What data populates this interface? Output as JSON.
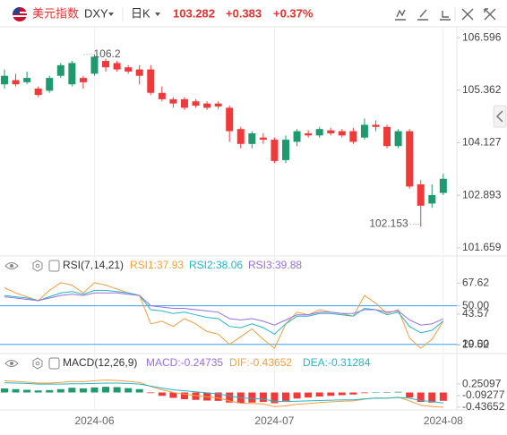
{
  "header": {
    "name": "美元指数",
    "symbol": "DXY",
    "period": "日K",
    "price": 103.282,
    "change": "+0.383",
    "change_pct": "+0.37%"
  },
  "chart_data": [
    {
      "type": "candlestick",
      "categories": [
        null,
        null,
        null,
        null,
        null,
        null,
        null,
        null,
        "2024-06",
        null,
        null,
        null,
        null,
        null,
        null,
        null,
        null,
        null,
        null,
        null,
        null,
        null,
        null,
        null,
        "2024-07",
        null,
        null,
        null,
        null,
        null,
        null,
        null,
        null,
        null,
        null,
        null,
        null,
        null,
        null,
        "2024-08"
      ],
      "open": [
        105.5,
        105.6,
        105.55,
        105.4,
        105.35,
        105.7,
        105.5,
        105.65,
        105.75,
        106.05,
        106.0,
        105.9,
        105.85,
        105.85,
        105.3,
        105.15,
        105.15,
        105.1,
        105.05,
        105.05,
        104.95,
        104.45,
        104.1,
        104.25,
        104.2,
        103.72,
        104.15,
        104.35,
        104.3,
        104.42,
        104.4,
        104.4,
        104.25,
        104.55,
        104.5,
        104.05,
        104.4,
        103.15,
        102.7,
        102.95
      ],
      "high": [
        105.85,
        105.75,
        105.8,
        105.45,
        105.7,
        106.0,
        106.05,
        105.7,
        106.2,
        106.102,
        106.05,
        105.95,
        105.95,
        105.95,
        105.45,
        105.2,
        105.2,
        105.15,
        105.1,
        105.1,
        105.0,
        104.5,
        104.4,
        104.35,
        104.25,
        104.3,
        104.45,
        104.42,
        104.5,
        104.48,
        104.45,
        104.48,
        104.7,
        104.65,
        104.55,
        104.45,
        104.45,
        103.25,
        103.15,
        103.4
      ],
      "low": [
        105.4,
        105.45,
        105.5,
        105.2,
        105.3,
        105.65,
        105.45,
        105.4,
        105.7,
        105.8,
        105.8,
        105.75,
        105.5,
        105.25,
        105.1,
        104.95,
        104.9,
        104.95,
        104.9,
        104.92,
        104.15,
        104.0,
        104.0,
        104.1,
        103.65,
        103.65,
        104.05,
        104.25,
        104.25,
        104.3,
        104.25,
        104.1,
        104.2,
        104.4,
        104.0,
        104.0,
        103.05,
        102.153,
        102.6,
        102.9
      ],
      "close": [
        105.7,
        105.5,
        105.65,
        105.25,
        105.65,
        105.95,
        106.0,
        105.55,
        106.15,
        105.9,
        105.85,
        105.8,
        105.7,
        105.3,
        105.15,
        105.05,
        104.95,
        105.0,
        104.95,
        104.98,
        104.4,
        104.1,
        104.35,
        104.2,
        103.7,
        104.2,
        104.4,
        104.3,
        104.45,
        104.35,
        104.3,
        104.15,
        104.55,
        104.5,
        104.05,
        104.4,
        103.1,
        102.65,
        102.9,
        103.282
      ],
      "up_color": "#1f9a6e",
      "down_color": "#f03a3a",
      "ylim": [
        101.49,
        106.85
      ],
      "yticks": [
        106.596,
        105.362,
        104.127,
        102.893,
        101.659
      ]
    },
    {
      "type": "line",
      "title": "RSI(7,14,21)",
      "series": [
        {
          "name": "RSI1:37.93",
          "color": "#f0a040",
          "values": [
            64,
            60,
            57,
            54,
            62,
            68,
            66,
            60,
            68,
            66,
            63,
            60,
            58,
            36,
            38,
            34,
            40,
            36,
            30,
            28,
            20,
            26,
            32,
            24,
            17,
            36,
            45,
            43,
            47,
            45,
            44,
            42,
            58,
            52,
            44,
            47,
            25,
            17,
            24,
            37.93
          ]
        },
        {
          "name": "RSI2:38.06",
          "color": "#26b5c8",
          "values": [
            58,
            57,
            56,
            54,
            57,
            60,
            61,
            59,
            62,
            62,
            61,
            60,
            58,
            47,
            46,
            44,
            45,
            43,
            41,
            40,
            34,
            33,
            36,
            33,
            28,
            36,
            42,
            42,
            44,
            44,
            43,
            42,
            48,
            47,
            43,
            45,
            34,
            29,
            31,
            38.06
          ]
        },
        {
          "name": "RSI3:39.88",
          "color": "#9b6fe0",
          "values": [
            57,
            56,
            55,
            54,
            56,
            58,
            59,
            58,
            60,
            60,
            60,
            59,
            58,
            50,
            49,
            48,
            48,
            47,
            46,
            45,
            40,
            39,
            40,
            38,
            35,
            39,
            43,
            43,
            45,
            45,
            44,
            44,
            47,
            47,
            45,
            46,
            39,
            35,
            36,
            39.88
          ]
        }
      ],
      "ylim": [
        15,
        72
      ],
      "yticks": [
        67.62,
        {
          "value": 50,
          "label": "50.00"
        },
        43.57,
        19.52,
        {
          "value": 20,
          "label": "20.00"
        }
      ],
      "hlines": [
        50,
        20
      ],
      "hline_color": "#3a9ef0"
    },
    {
      "type": "combo",
      "title": "MACD(12,26,9)",
      "series": [
        {
          "name": "MACD:-0.24735",
          "kind": "bar",
          "color": "#9b6fe0",
          "up_color": "#1f9a6e",
          "down_color": "#f03a3a",
          "values": [
            0.12,
            0.1,
            0.08,
            0.06,
            0.07,
            0.1,
            0.14,
            0.12,
            0.15,
            0.17,
            0.16,
            0.13,
            0.1,
            -0.02,
            -0.1,
            -0.16,
            -0.2,
            -0.22,
            -0.24,
            -0.25,
            -0.3,
            -0.32,
            -0.3,
            -0.28,
            -0.32,
            -0.25,
            -0.18,
            -0.15,
            -0.12,
            -0.1,
            -0.08,
            -0.06,
            -0.02,
            0.01,
            0.0,
            0.02,
            -0.15,
            -0.28,
            -0.3,
            -0.24735
          ]
        },
        {
          "name": "DIF:-0.43652",
          "kind": "line",
          "color": "#f0a040",
          "values": [
            0.35,
            0.33,
            0.31,
            0.28,
            0.28,
            0.3,
            0.33,
            0.32,
            0.35,
            0.37,
            0.36,
            0.33,
            0.3,
            0.18,
            0.08,
            0.0,
            -0.05,
            -0.09,
            -0.13,
            -0.16,
            -0.25,
            -0.32,
            -0.33,
            -0.34,
            -0.42,
            -0.4,
            -0.35,
            -0.33,
            -0.3,
            -0.28,
            -0.26,
            -0.25,
            -0.2,
            -0.16,
            -0.17,
            -0.14,
            -0.25,
            -0.38,
            -0.42,
            -0.43652
          ]
        },
        {
          "name": "DEA:-0.31284",
          "kind": "line",
          "color": "#26b5c8",
          "values": [
            0.29,
            0.28,
            0.27,
            0.25,
            0.25,
            0.25,
            0.26,
            0.26,
            0.27,
            0.28,
            0.28,
            0.27,
            0.25,
            0.19,
            0.13,
            0.08,
            0.05,
            0.02,
            -0.01,
            -0.04,
            -0.1,
            -0.16,
            -0.18,
            -0.2,
            -0.26,
            -0.27,
            -0.26,
            -0.25,
            -0.24,
            -0.23,
            -0.22,
            -0.22,
            -0.19,
            -0.17,
            -0.17,
            -0.15,
            -0.17,
            -0.24,
            -0.27,
            -0.31284
          ]
        }
      ],
      "ylim": [
        -0.52,
        0.6
      ],
      "yticks": [
        0.25097,
        -0.09277,
        -0.43652
      ]
    }
  ]
}
